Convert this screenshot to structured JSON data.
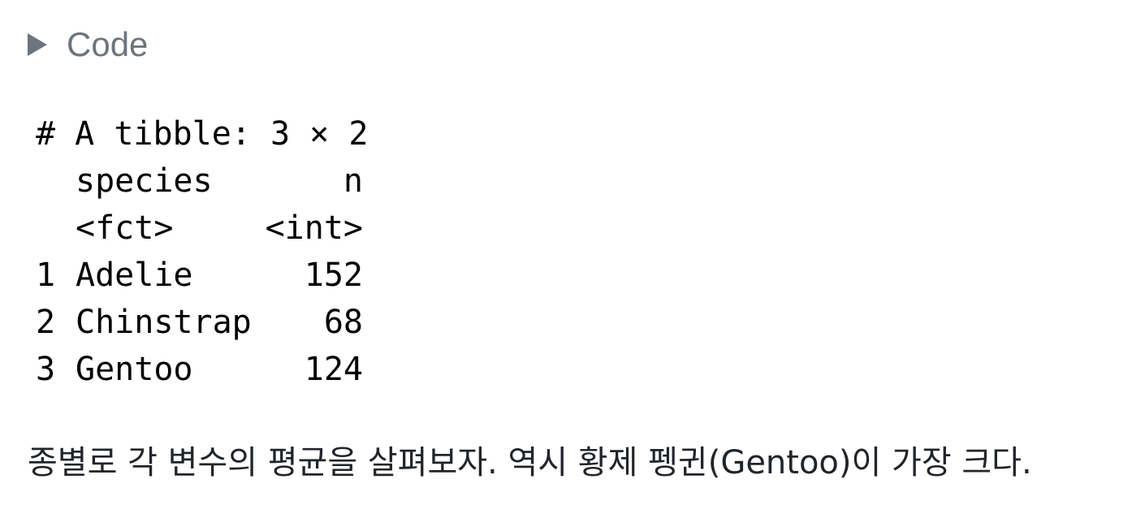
{
  "code_toggle": {
    "label": "Code",
    "icon": "triangle-right-icon"
  },
  "output": {
    "header": "# A tibble: 3 × 2",
    "columns": [
      "species",
      "n"
    ],
    "types": [
      "<fct>",
      "<int>"
    ],
    "rows": [
      {
        "idx": "1",
        "species": "Adelie",
        "n": "152"
      },
      {
        "idx": "2",
        "species": "Chinstrap",
        "n": "68"
      },
      {
        "idx": "3",
        "species": "Gentoo",
        "n": "124"
      }
    ]
  },
  "paragraph": "종별로 각 변수의 평균을 살펴보자. 역시 황제 펭귄(Gentoo)이 가장 크다."
}
